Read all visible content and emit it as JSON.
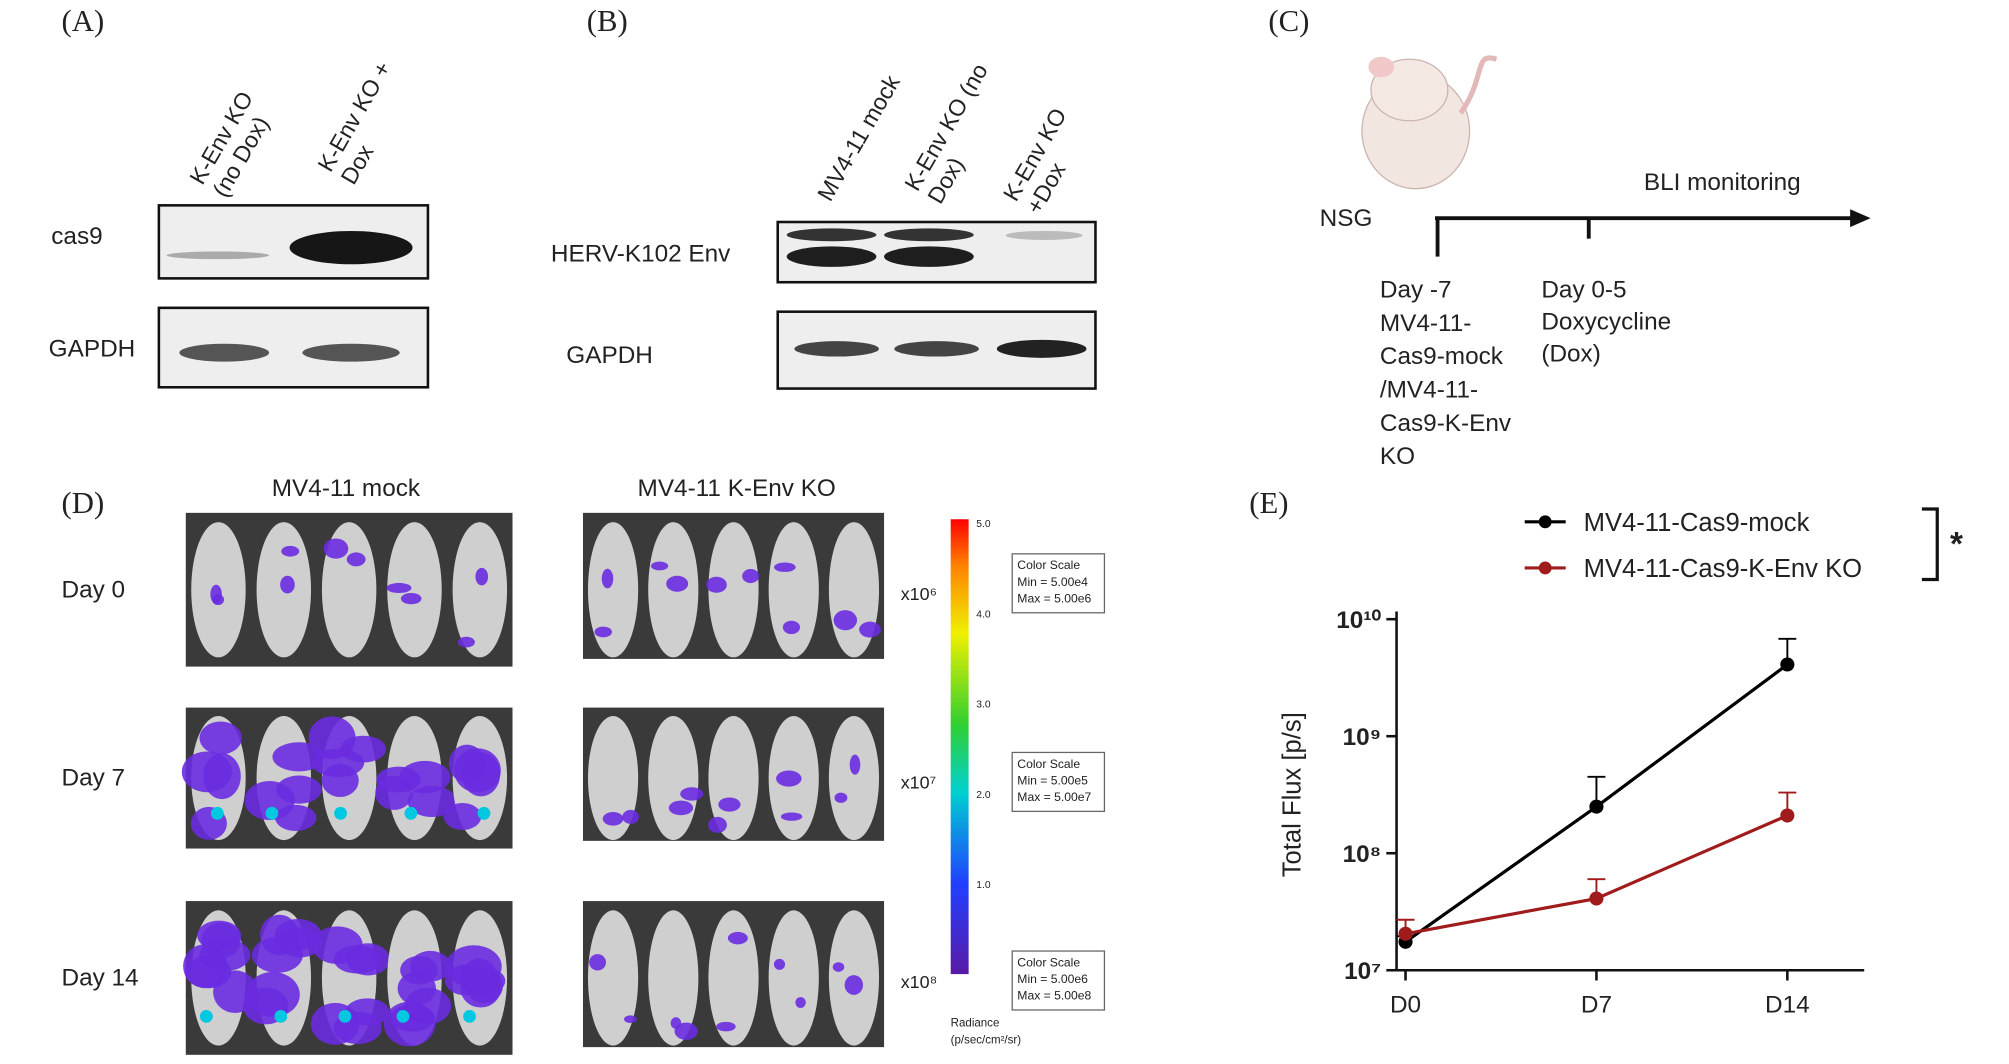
{
  "panels": {
    "a": {
      "label": "(A)",
      "lanes": [
        [
          "K-Env KO",
          "(no Dox)"
        ],
        [
          "K-Env KO +",
          "Dox"
        ]
      ],
      "rows": [
        "cas9",
        "GAPDH"
      ]
    },
    "b": {
      "label": "(B)",
      "lanes": [
        [
          "MV4-11 mock"
        ],
        [
          "K-Env KO (no",
          "Dox)"
        ],
        [
          "K-Env KO",
          "+Dox"
        ]
      ],
      "rows": [
        "HERV-K102 Env",
        "GAPDH"
      ]
    },
    "c": {
      "label": "(C)",
      "strain": "NSG",
      "monitoring": "BLI monitoring",
      "events": [
        [
          "Day -7",
          "MV4-11-",
          "Cas9-mock",
          "/MV4-11-",
          "Cas9-K-Env",
          "KO"
        ],
        [
          "Day 0-5",
          "Doxycycline",
          "(Dox)"
        ]
      ]
    },
    "d": {
      "label": "(D)",
      "groups": [
        "MV4-11 mock",
        "MV4-11 K-Env KO"
      ],
      "days": [
        "Day 0",
        "Day 7",
        "Day 14"
      ],
      "multipliers": [
        "x10⁶",
        "x10⁷",
        "x10⁸"
      ],
      "scale_ticks": [
        "5.0",
        "4.0",
        "3.0",
        "2.0",
        "1.0"
      ],
      "scale_boxes": [
        [
          "Color Scale",
          "Min = 5.00e4",
          "Max = 5.00e6"
        ],
        [
          "Color Scale",
          "Min = 5.00e5",
          "Max = 5.00e7"
        ],
        [
          "Color Scale",
          "Min = 5.00e6",
          "Max = 5.00e8"
        ]
      ],
      "radiance": [
        "Radiance",
        "(p/sec/cm²/sr)"
      ]
    },
    "e": {
      "label": "(E)"
    }
  },
  "chart_data": {
    "type": "line",
    "y_label": "Total Flux [p/s]",
    "categories": [
      "D0",
      "D7",
      "D14"
    ],
    "series": [
      {
        "name": "MV4-11-Cas9-mock",
        "color": "#000000",
        "values": [
          17500000,
          250000000,
          4100000000
        ],
        "errors": [
          2000000,
          200000000,
          2700000000
        ]
      },
      {
        "name": "MV4-11-Cas9-K-Env KO",
        "color": "#a01c1c",
        "values": [
          20500000,
          41000000,
          210000000
        ],
        "errors": [
          6500000,
          19000000,
          120000000
        ]
      }
    ],
    "ylim": [
      10000000,
      10000000000
    ],
    "yticks": [
      {
        "value": 10000000,
        "label": "10⁷"
      },
      {
        "value": 100000000,
        "label": "10⁸"
      },
      {
        "value": 1000000000,
        "label": "10⁹"
      },
      {
        "value": 10000000000,
        "label": "10¹⁰"
      }
    ],
    "log_scale": true,
    "annotation": "*",
    "legend": "top right"
  }
}
